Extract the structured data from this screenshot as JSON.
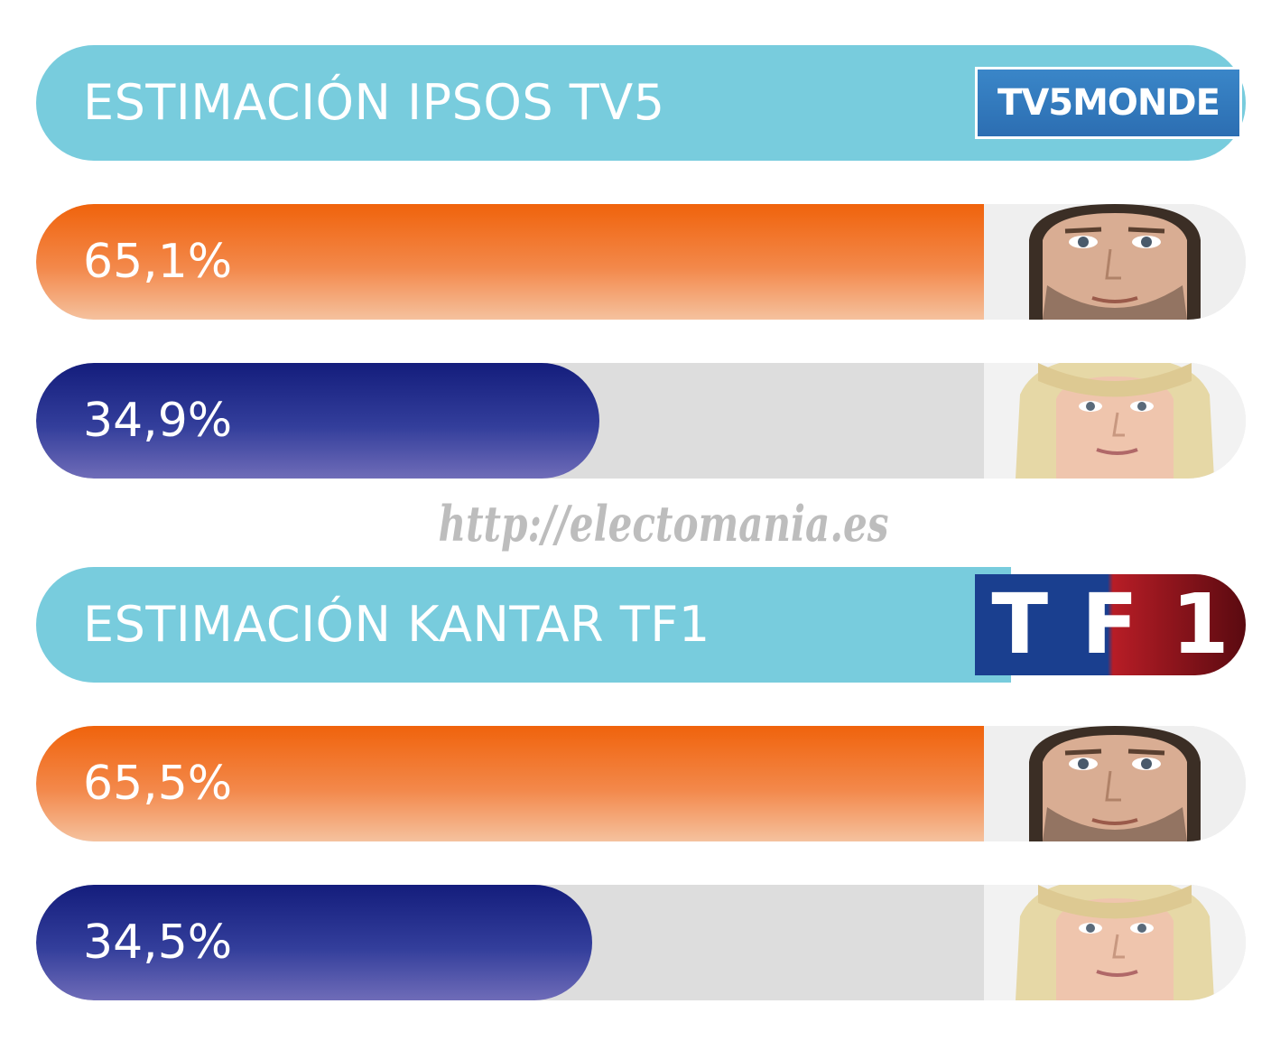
{
  "watermark": "http://electomania.es",
  "colors": {
    "header": "#78ccdd",
    "track": "#dddddd",
    "macron": "#f0630c",
    "lepen": "#141d7c"
  },
  "chart_data": [
    {
      "type": "bar",
      "title": "ESTIMACIÓN IPSOS TV5",
      "logo": {
        "text": "TV5MONDE",
        "icon": "tv5monde-logo"
      },
      "categories": [
        "macron-photo",
        "le-pen-photo"
      ],
      "values": [
        65.1,
        34.9
      ],
      "labels": [
        "65,1%",
        "34,9%"
      ],
      "ylim": [
        0,
        100
      ]
    },
    {
      "type": "bar",
      "title": "ESTIMACIÓN KANTAR TF1",
      "logo": {
        "text": [
          "T",
          "F",
          "1"
        ],
        "icon": "tf1-logo"
      },
      "categories": [
        "macron-photo",
        "le-pen-photo"
      ],
      "values": [
        65.5,
        34.5
      ],
      "labels": [
        "65,5%",
        "34,5%"
      ],
      "ylim": [
        0,
        100
      ]
    }
  ]
}
